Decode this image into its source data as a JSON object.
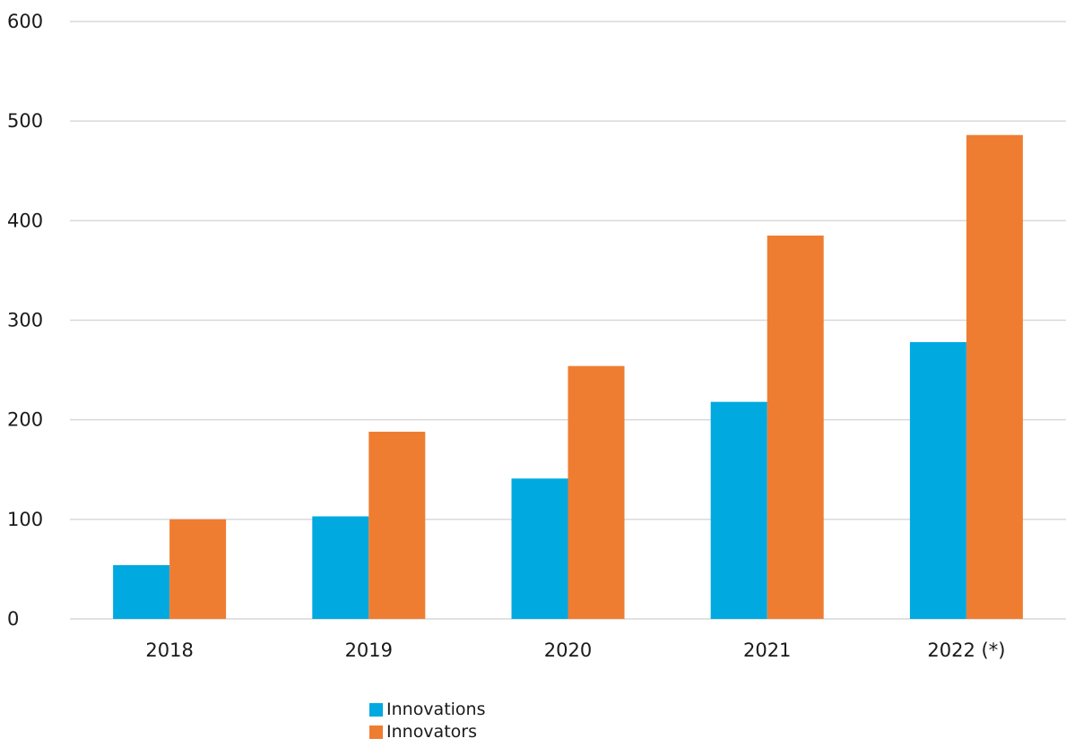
{
  "chart_data": {
    "type": "bar",
    "categories": [
      "2018",
      "2019",
      "2020",
      "2021",
      "2022 (*)"
    ],
    "series": [
      {
        "name": "Innovations",
        "color": "#00a9e0",
        "values": [
          54,
          103,
          141,
          218,
          278
        ]
      },
      {
        "name": "Innovators",
        "color": "#ef7d31",
        "values": [
          100,
          188,
          254,
          385,
          486
        ]
      }
    ],
    "ylim": [
      0,
      600
    ],
    "yticks": [
      0,
      100,
      200,
      300,
      400,
      500,
      600
    ],
    "grid": true,
    "gridline_color": "#d9d9d9",
    "legend_position": "bottom"
  }
}
